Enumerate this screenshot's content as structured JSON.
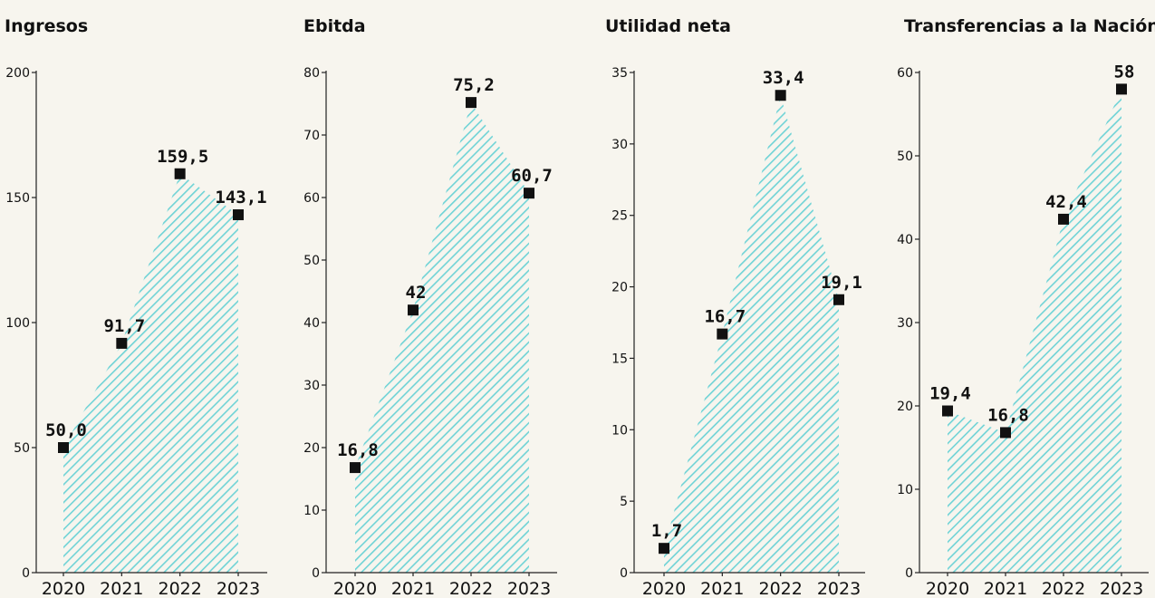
{
  "chart_data": [
    {
      "type": "area",
      "title": "Ingresos",
      "categories": [
        "2020",
        "2021",
        "2022",
        "2023"
      ],
      "values": [
        50.0,
        91.7,
        159.5,
        143.1
      ],
      "value_labels": [
        "50,0",
        "91,7",
        "159,5",
        "143,1"
      ],
      "ylim": [
        0,
        200
      ],
      "yticks": [
        0,
        50,
        100,
        150,
        200
      ],
      "grid": false,
      "color": "#6fd3d6"
    },
    {
      "type": "area",
      "title": "Ebitda",
      "categories": [
        "2020",
        "2021",
        "2022",
        "2023"
      ],
      "values": [
        16.8,
        42,
        75.2,
        60.7
      ],
      "value_labels": [
        "16,8",
        "42",
        "75,2",
        "60,7"
      ],
      "ylim": [
        0,
        80
      ],
      "yticks": [
        0,
        10,
        20,
        30,
        40,
        50,
        60,
        70,
        80
      ],
      "grid": false,
      "color": "#6fd3d6"
    },
    {
      "type": "area",
      "title": "Utilidad neta",
      "categories": [
        "2020",
        "2021",
        "2022",
        "2023"
      ],
      "values": [
        1.7,
        16.7,
        33.4,
        19.1
      ],
      "value_labels": [
        "1,7",
        "16,7",
        "33,4",
        "19,1"
      ],
      "ylim": [
        0,
        35
      ],
      "yticks": [
        0,
        5,
        10,
        15,
        20,
        25,
        30,
        35
      ],
      "grid": false,
      "color": "#6fd3d6"
    },
    {
      "type": "area",
      "title": "Transferencias a la Nación.",
      "categories": [
        "2020",
        "2021",
        "2022",
        "2023"
      ],
      "values": [
        19.4,
        16.8,
        42.4,
        58
      ],
      "value_labels": [
        "19,4",
        "16,8",
        "42,4",
        "58"
      ],
      "ylim": [
        0,
        60
      ],
      "yticks": [
        0,
        10,
        20,
        30,
        40,
        50,
        60
      ],
      "grid": false,
      "color": "#6fd3d6"
    }
  ]
}
